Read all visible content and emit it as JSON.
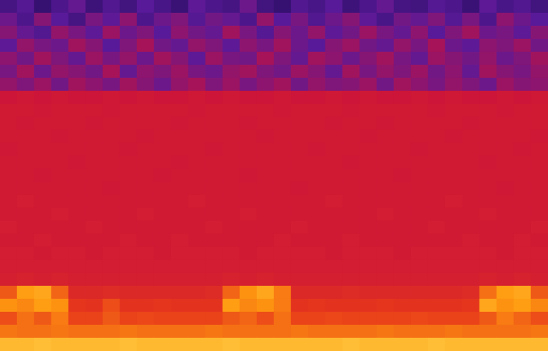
{
  "chart_data": {
    "type": "heatmap",
    "tick_labels": false,
    "grid": false,
    "zlim": [
      0,
      100
    ],
    "cells": [
      [
        28,
        32,
        24,
        30,
        35,
        26,
        31,
        27,
        33,
        29,
        25,
        34,
        30,
        28,
        36,
        27,
        24,
        31,
        29,
        33,
        26,
        30,
        35,
        28,
        27,
        32,
        30,
        25,
        34,
        29,
        31,
        27
      ],
      [
        36,
        30,
        40,
        33,
        28,
        38,
        34,
        41,
        30,
        36,
        39,
        32,
        37,
        35,
        30,
        42,
        33,
        38,
        31,
        36,
        40,
        34,
        29,
        37,
        35,
        39,
        32,
        38,
        30,
        41,
        36,
        33
      ],
      [
        40,
        35,
        31,
        42,
        38,
        34,
        43,
        36,
        39,
        33,
        41,
        37,
        35,
        44,
        38,
        32,
        40,
        36,
        42,
        34,
        37,
        43,
        38,
        35,
        41,
        33,
        39,
        44,
        36,
        38,
        34,
        40
      ],
      [
        34,
        42,
        38,
        36,
        44,
        40,
        33,
        39,
        45,
        37,
        35,
        42,
        39,
        34,
        41,
        38,
        44,
        36,
        33,
        40,
        43,
        37,
        35,
        42,
        38,
        45,
        36,
        34,
        41,
        39,
        43,
        37
      ],
      [
        41,
        37,
        44,
        39,
        35,
        43,
        38,
        42,
        36,
        44,
        40,
        34,
        43,
        38,
        37,
        45,
        39,
        35,
        44,
        41,
        36,
        40,
        44,
        38,
        35,
        43,
        40,
        37,
        42,
        36,
        39,
        44
      ],
      [
        38,
        44,
        36,
        42,
        40,
        37,
        45,
        35,
        41,
        39,
        43,
        38,
        36,
        42,
        44,
        39,
        37,
        43,
        40,
        35,
        44,
        38,
        42,
        39,
        43,
        37,
        41,
        35,
        44,
        40,
        38,
        42
      ],
      [
        42,
        39,
        43,
        37,
        44,
        41,
        38,
        44,
        40,
        36,
        42,
        45,
        39,
        43,
        38,
        41,
        44,
        37,
        42,
        39,
        40,
        43,
        37,
        44,
        41,
        38,
        42,
        39,
        36,
        43,
        40,
        41
      ],
      [
        52,
        53,
        52,
        53,
        52,
        52,
        53,
        52,
        53,
        52,
        52,
        53,
        52,
        53,
        52,
        52,
        53,
        52,
        52,
        53,
        52,
        53,
        52,
        52,
        53,
        52,
        53,
        52,
        52,
        53,
        52,
        53
      ],
      [
        54,
        54,
        53,
        54,
        54,
        54,
        53,
        54,
        54,
        54,
        54,
        53,
        54,
        54,
        54,
        54,
        53,
        54,
        54,
        54,
        53,
        54,
        54,
        54,
        54,
        53,
        54,
        54,
        54,
        53,
        54,
        54
      ],
      [
        54,
        53,
        54,
        54,
        54,
        53,
        54,
        54,
        54,
        54,
        53,
        54,
        54,
        54,
        53,
        54,
        54,
        54,
        54,
        53,
        54,
        54,
        53,
        54,
        54,
        54,
        54,
        53,
        54,
        54,
        54,
        54
      ],
      [
        54,
        54,
        54,
        53,
        54,
        54,
        54,
        54,
        53,
        54,
        54,
        54,
        54,
        54,
        54,
        53,
        54,
        54,
        54,
        54,
        54,
        53,
        54,
        54,
        54,
        54,
        53,
        54,
        54,
        54,
        54,
        53
      ],
      [
        53,
        54,
        54,
        54,
        54,
        54,
        54,
        53,
        54,
        54,
        54,
        54,
        53,
        54,
        54,
        54,
        54,
        54,
        53,
        54,
        54,
        54,
        54,
        54,
        53,
        54,
        54,
        54,
        54,
        54,
        53,
        54
      ],
      [
        54,
        54,
        54,
        54,
        53,
        54,
        54,
        54,
        54,
        54,
        53,
        54,
        54,
        54,
        54,
        54,
        54,
        54,
        54,
        54,
        53,
        54,
        54,
        54,
        54,
        54,
        54,
        54,
        53,
        54,
        54,
        54
      ],
      [
        54,
        54,
        53,
        54,
        54,
        54,
        54,
        54,
        54,
        53,
        54,
        54,
        54,
        54,
        53,
        54,
        54,
        54,
        54,
        54,
        54,
        54,
        54,
        53,
        54,
        54,
        54,
        54,
        54,
        54,
        54,
        54
      ],
      [
        54,
        54,
        54,
        54,
        54,
        54,
        53,
        54,
        54,
        54,
        54,
        54,
        54,
        54,
        54,
        54,
        54,
        53,
        54,
        54,
        54,
        54,
        54,
        54,
        54,
        54,
        54,
        54,
        54,
        53,
        54,
        54
      ],
      [
        54,
        55,
        54,
        54,
        54,
        54,
        54,
        54,
        54,
        54,
        54,
        55,
        54,
        54,
        54,
        54,
        54,
        54,
        54,
        55,
        54,
        54,
        54,
        54,
        54,
        54,
        55,
        54,
        54,
        54,
        54,
        54
      ],
      [
        54,
        54,
        54,
        55,
        54,
        54,
        54,
        54,
        55,
        54,
        54,
        54,
        54,
        54,
        55,
        54,
        54,
        54,
        54,
        54,
        54,
        54,
        55,
        54,
        54,
        54,
        54,
        54,
        55,
        54,
        54,
        54
      ],
      [
        55,
        54,
        54,
        54,
        54,
        55,
        54,
        54,
        54,
        54,
        54,
        54,
        55,
        54,
        54,
        54,
        54,
        55,
        54,
        54,
        54,
        54,
        54,
        54,
        54,
        55,
        54,
        54,
        54,
        54,
        54,
        55
      ],
      [
        54,
        54,
        55,
        54,
        54,
        54,
        54,
        55,
        54,
        54,
        55,
        54,
        54,
        54,
        54,
        54,
        55,
        54,
        54,
        54,
        55,
        54,
        54,
        54,
        54,
        54,
        54,
        55,
        54,
        54,
        55,
        54
      ],
      [
        55,
        55,
        54,
        55,
        55,
        54,
        55,
        55,
        55,
        54,
        55,
        55,
        55,
        55,
        54,
        55,
        55,
        55,
        55,
        54,
        55,
        55,
        55,
        54,
        55,
        55,
        55,
        55,
        55,
        54,
        55,
        55
      ],
      [
        55,
        55,
        55,
        55,
        55,
        55,
        55,
        55,
        55,
        55,
        55,
        55,
        55,
        55,
        55,
        55,
        55,
        55,
        55,
        55,
        55,
        55,
        55,
        55,
        55,
        55,
        55,
        55,
        55,
        55,
        55,
        55
      ],
      [
        56,
        57,
        56,
        57,
        56,
        56,
        56,
        56,
        56,
        56,
        56,
        56,
        56,
        57,
        56,
        57,
        56,
        56,
        56,
        56,
        56,
        56,
        56,
        56,
        56,
        56,
        56,
        56,
        57,
        56,
        57,
        56
      ],
      [
        72,
        84,
        86,
        74,
        60,
        60,
        61,
        60,
        60,
        60,
        60,
        60,
        61,
        74,
        82,
        86,
        78,
        60,
        60,
        60,
        61,
        60,
        60,
        60,
        60,
        60,
        60,
        61,
        76,
        84,
        86,
        72
      ],
      [
        82,
        80,
        84,
        82,
        65,
        64,
        70,
        64,
        64,
        65,
        64,
        64,
        64,
        84,
        80,
        82,
        78,
        64,
        65,
        64,
        64,
        64,
        65,
        64,
        64,
        64,
        64,
        65,
        86,
        82,
        84,
        80
      ],
      [
        70,
        76,
        72,
        78,
        68,
        68,
        72,
        68,
        69,
        68,
        68,
        68,
        68,
        72,
        74,
        70,
        76,
        68,
        68,
        69,
        68,
        68,
        68,
        68,
        69,
        68,
        68,
        68,
        72,
        78,
        74,
        70
      ],
      [
        77,
        76,
        76,
        77,
        76,
        76,
        76,
        77,
        76,
        76,
        76,
        76,
        77,
        76,
        76,
        76,
        76,
        77,
        76,
        76,
        76,
        76,
        77,
        76,
        76,
        76,
        77,
        76,
        76,
        76,
        76,
        77
      ],
      [
        90,
        90,
        91,
        90,
        90,
        90,
        90,
        91,
        90,
        90,
        90,
        90,
        90,
        91,
        90,
        90,
        90,
        90,
        90,
        90,
        91,
        90,
        90,
        90,
        90,
        91,
        90,
        90,
        90,
        90,
        90,
        90
      ]
    ]
  }
}
